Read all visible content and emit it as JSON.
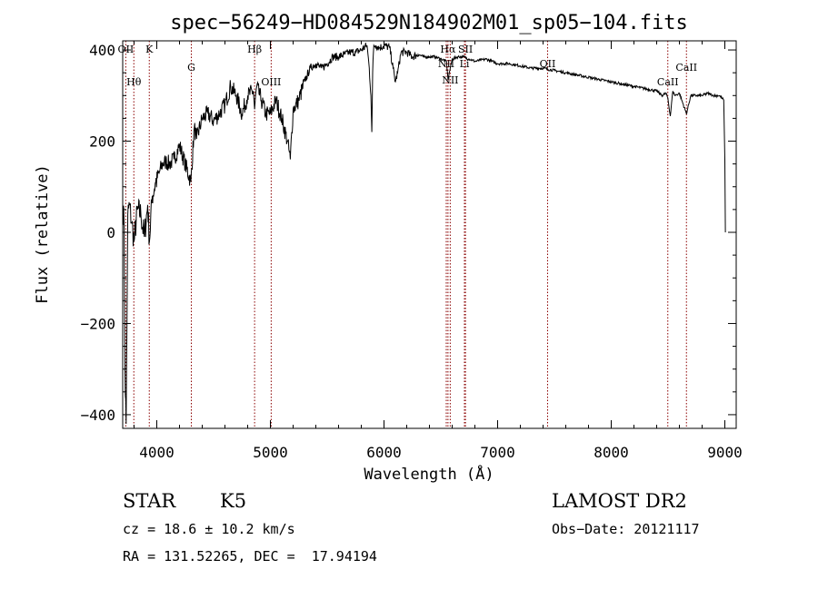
{
  "chart_data": {
    "type": "line",
    "title": "spec−56249−HD084529N184902M01_sp05−104.fits",
    "xlabel": "Wavelength (Å)",
    "ylabel": "Flux (relative)",
    "xlim": [
      3700,
      9100
    ],
    "ylim": [
      -430,
      420
    ],
    "xticks": [
      4000,
      5000,
      6000,
      7000,
      8000,
      9000
    ],
    "yticks": [
      -400,
      -200,
      0,
      200,
      400
    ],
    "ytick_labels": [
      "−400",
      "−200",
      "0",
      "200",
      "400"
    ],
    "grid": false,
    "series": [
      {
        "x": [
          3700,
          3712,
          3720,
          3730,
          3745,
          3760,
          3780,
          3800,
          3830,
          3860,
          3890,
          3920,
          3935,
          3960,
          3990,
          4020,
          4050,
          4080,
          4110,
          4150,
          4200,
          4250,
          4300,
          4330,
          4350,
          4400,
          4450,
          4500,
          4550,
          4600,
          4650,
          4700,
          4750,
          4800,
          4850,
          4861,
          4880,
          4920,
          4960,
          5000,
          5050,
          5100,
          5150,
          5175,
          5200,
          5250,
          5300,
          5350,
          5400,
          5450,
          5500,
          5550,
          5600,
          5650,
          5700,
          5750,
          5800,
          5850,
          5870,
          5885,
          5893,
          5900,
          5910,
          5930,
          5960,
          6000,
          6050,
          6080,
          6100,
          6120,
          6150,
          6200,
          6250,
          6300,
          6350,
          6400,
          6450,
          6500,
          6550,
          6563,
          6600,
          6650,
          6700,
          6750,
          6800,
          6900,
          7000,
          7100,
          7200,
          7300,
          7400,
          7500,
          7600,
          7700,
          7800,
          7900,
          8000,
          8100,
          8200,
          8300,
          8400,
          8450,
          8480,
          8498,
          8520,
          8542,
          8560,
          8600,
          8662,
          8700,
          8750,
          8800,
          8850,
          8900,
          8950,
          8990,
          9000,
          9005
        ],
        "y": [
          60,
          20,
          -300,
          -420,
          40,
          60,
          20,
          -20,
          50,
          40,
          -10,
          60,
          -20,
          80,
          110,
          130,
          150,
          155,
          150,
          160,
          190,
          150,
          110,
          230,
          205,
          250,
          260,
          245,
          260,
          280,
          320,
          300,
          260,
          300,
          310,
          270,
          320,
          290,
          260,
          260,
          290,
          250,
          200,
          160,
          270,
          290,
          330,
          360,
          370,
          360,
          370,
          385,
          385,
          390,
          395,
          395,
          400,
          410,
          360,
          300,
          220,
          350,
          410,
          410,
          405,
          410,
          405,
          360,
          330,
          350,
          395,
          395,
          385,
          390,
          385,
          385,
          385,
          380,
          375,
          335,
          380,
          385,
          385,
          380,
          375,
          380,
          370,
          370,
          365,
          360,
          360,
          355,
          350,
          345,
          340,
          335,
          330,
          325,
          320,
          315,
          310,
          300,
          305,
          295,
          255,
          310,
          300,
          305,
          260,
          300,
          300,
          300,
          305,
          300,
          300,
          290,
          160,
          0
        ]
      }
    ],
    "lines": [
      {
        "x": 3727,
        "label": "OII"
      },
      {
        "x": 3798,
        "label": "Hθ"
      },
      {
        "x": 3934,
        "label": "K"
      },
      {
        "x": 4304,
        "label": "G"
      },
      {
        "x": 4861,
        "label": "Hβ"
      },
      {
        "x": 5007,
        "label": "OIII"
      },
      {
        "x": 6548,
        "label": "NII"
      },
      {
        "x": 6563,
        "label": "Hα"
      },
      {
        "x": 6583,
        "label": "NII"
      },
      {
        "x": 6708,
        "label": "Li"
      },
      {
        "x": 6717,
        "label": "SII"
      },
      {
        "x": 7440,
        "label": "OII"
      },
      {
        "x": 8498,
        "label": "CaII"
      },
      {
        "x": 8662,
        "label": "CaII"
      }
    ]
  },
  "footer": {
    "object_class": "STAR",
    "subclass": "K5",
    "survey": "LAMOST DR2",
    "cz": "cz = 18.6 ± 10.2 km/s",
    "obs_date": "Obs−Date: 20121117",
    "coords": "RA = 131.52265, DEC =  17.94194"
  }
}
